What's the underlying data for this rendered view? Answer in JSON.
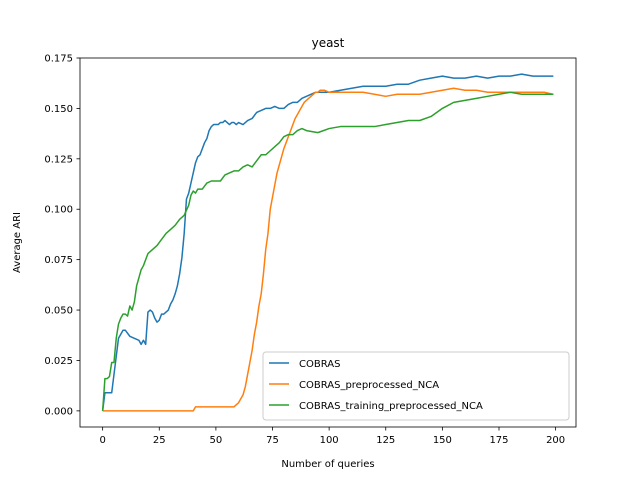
{
  "chart_data": {
    "type": "line",
    "title": "yeast",
    "xlabel": "Number of queries",
    "ylabel": "Average ARI",
    "xlim": [
      -10,
      209
    ],
    "ylim": [
      -0.008,
      0.175
    ],
    "xticks": [
      0,
      25,
      50,
      75,
      100,
      125,
      150,
      175,
      200
    ],
    "yticks": [
      0.0,
      0.025,
      0.05,
      0.075,
      0.1,
      0.125,
      0.15,
      0.175
    ],
    "ytick_labels": [
      "0.000",
      "0.025",
      "0.050",
      "0.075",
      "0.100",
      "0.125",
      "0.150",
      "0.175"
    ],
    "grid": false,
    "legend_position": "lower right",
    "series": [
      {
        "name": "COBRAS",
        "color": "#1f77b4",
        "x": [
          0,
          1,
          2,
          3,
          4,
          5,
          6,
          7,
          8,
          9,
          10,
          12,
          14,
          16,
          17,
          18,
          19,
          20,
          21,
          22,
          23,
          24,
          25,
          26,
          27,
          28,
          29,
          30,
          31,
          32,
          33,
          34,
          35,
          36,
          37,
          38,
          39,
          40,
          41,
          42,
          43,
          44,
          45,
          46,
          47,
          48,
          49,
          50,
          51,
          52,
          53,
          54,
          55,
          56,
          57,
          58,
          59,
          60,
          62,
          64,
          66,
          68,
          70,
          72,
          74,
          76,
          78,
          80,
          82,
          84,
          86,
          88,
          90,
          92,
          94,
          96,
          98,
          100,
          105,
          110,
          115,
          120,
          125,
          130,
          135,
          140,
          145,
          150,
          155,
          160,
          165,
          170,
          175,
          180,
          185,
          190,
          195,
          199
        ],
        "y": [
          0.0,
          0.009,
          0.009,
          0.009,
          0.009,
          0.018,
          0.027,
          0.036,
          0.038,
          0.04,
          0.04,
          0.037,
          0.036,
          0.035,
          0.033,
          0.035,
          0.033,
          0.049,
          0.05,
          0.049,
          0.046,
          0.044,
          0.045,
          0.048,
          0.048,
          0.049,
          0.05,
          0.053,
          0.055,
          0.058,
          0.062,
          0.068,
          0.076,
          0.088,
          0.105,
          0.108,
          0.113,
          0.118,
          0.123,
          0.126,
          0.127,
          0.13,
          0.133,
          0.135,
          0.139,
          0.141,
          0.142,
          0.142,
          0.142,
          0.143,
          0.143,
          0.144,
          0.143,
          0.142,
          0.143,
          0.143,
          0.142,
          0.143,
          0.142,
          0.144,
          0.145,
          0.148,
          0.149,
          0.15,
          0.15,
          0.151,
          0.15,
          0.15,
          0.152,
          0.153,
          0.153,
          0.155,
          0.156,
          0.157,
          0.158,
          0.158,
          0.158,
          0.158,
          0.159,
          0.16,
          0.161,
          0.161,
          0.161,
          0.162,
          0.162,
          0.164,
          0.165,
          0.166,
          0.165,
          0.165,
          0.166,
          0.165,
          0.166,
          0.166,
          0.167,
          0.166,
          0.166,
          0.166
        ]
      },
      {
        "name": "COBRAS_preprocessed_NCA",
        "color": "#ff7f0e",
        "x": [
          0,
          10,
          20,
          30,
          40,
          41,
          45,
          50,
          55,
          57,
          58,
          60,
          61,
          62,
          63,
          64,
          65,
          66,
          67,
          68,
          69,
          70,
          71,
          72,
          73,
          74,
          75,
          76,
          77,
          78,
          79,
          80,
          81,
          82,
          83,
          84,
          85,
          86,
          87,
          88,
          89,
          90,
          91,
          92,
          93,
          94,
          95,
          96,
          98,
          100,
          105,
          110,
          115,
          120,
          125,
          130,
          135,
          140,
          145,
          150,
          155,
          160,
          165,
          170,
          175,
          180,
          185,
          190,
          195,
          199
        ],
        "y": [
          0.0,
          0.0,
          0.0,
          0.0,
          0.0,
          0.002,
          0.002,
          0.002,
          0.002,
          0.002,
          0.002,
          0.004,
          0.006,
          0.008,
          0.012,
          0.018,
          0.024,
          0.03,
          0.038,
          0.044,
          0.052,
          0.058,
          0.068,
          0.08,
          0.088,
          0.1,
          0.106,
          0.112,
          0.118,
          0.122,
          0.126,
          0.13,
          0.133,
          0.136,
          0.139,
          0.142,
          0.145,
          0.147,
          0.149,
          0.151,
          0.153,
          0.154,
          0.155,
          0.156,
          0.157,
          0.158,
          0.158,
          0.159,
          0.159,
          0.158,
          0.158,
          0.158,
          0.158,
          0.157,
          0.156,
          0.157,
          0.157,
          0.157,
          0.158,
          0.159,
          0.16,
          0.159,
          0.159,
          0.158,
          0.158,
          0.158,
          0.158,
          0.158,
          0.158,
          0.157
        ]
      },
      {
        "name": "COBRAS_training_preprocessed_NCA",
        "color": "#2ca02c",
        "x": [
          0,
          1,
          2,
          3,
          4,
          5,
          6,
          7,
          8,
          9,
          10,
          11,
          12,
          13,
          14,
          15,
          16,
          17,
          18,
          19,
          20,
          22,
          24,
          26,
          28,
          30,
          32,
          34,
          36,
          38,
          39,
          40,
          41,
          42,
          44,
          46,
          48,
          50,
          52,
          54,
          56,
          58,
          60,
          62,
          64,
          66,
          68,
          70,
          72,
          74,
          76,
          78,
          80,
          82,
          84,
          86,
          88,
          90,
          95,
          100,
          105,
          110,
          115,
          120,
          125,
          130,
          135,
          140,
          145,
          150,
          155,
          160,
          165,
          170,
          175,
          180,
          185,
          190,
          195,
          199
        ],
        "y": [
          0.0,
          0.016,
          0.016,
          0.017,
          0.024,
          0.024,
          0.036,
          0.043,
          0.046,
          0.048,
          0.048,
          0.047,
          0.052,
          0.05,
          0.054,
          0.062,
          0.066,
          0.07,
          0.072,
          0.075,
          0.078,
          0.08,
          0.082,
          0.085,
          0.088,
          0.09,
          0.092,
          0.095,
          0.097,
          0.102,
          0.107,
          0.109,
          0.108,
          0.11,
          0.11,
          0.113,
          0.114,
          0.114,
          0.114,
          0.117,
          0.118,
          0.119,
          0.119,
          0.121,
          0.122,
          0.121,
          0.124,
          0.127,
          0.127,
          0.129,
          0.131,
          0.133,
          0.136,
          0.137,
          0.137,
          0.139,
          0.14,
          0.139,
          0.138,
          0.14,
          0.141,
          0.141,
          0.141,
          0.141,
          0.142,
          0.143,
          0.144,
          0.144,
          0.146,
          0.15,
          0.153,
          0.154,
          0.155,
          0.156,
          0.157,
          0.158,
          0.157,
          0.157,
          0.157,
          0.157
        ]
      }
    ]
  }
}
